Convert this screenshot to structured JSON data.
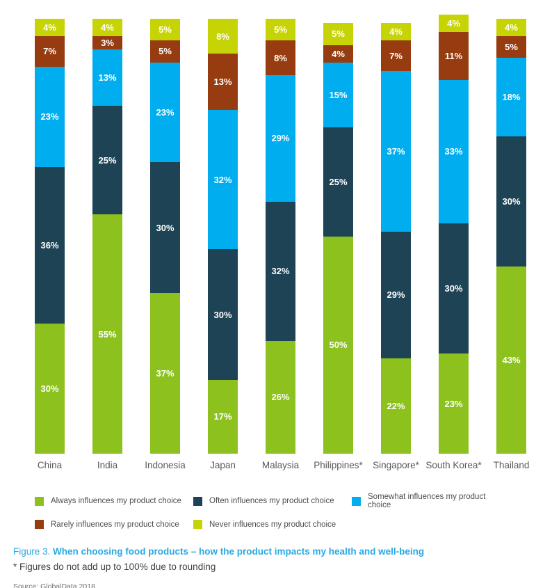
{
  "chart_data": {
    "type": "bar",
    "stacked": true,
    "orientation": "vertical",
    "grid": false,
    "axes_visible": false,
    "value_suffix": "%",
    "legend_position": "bottom",
    "categories": [
      "China",
      "India",
      "Indonesia",
      "Japan",
      "Malaysia",
      "Philippines*",
      "Singapore*",
      "South Korea*",
      "Thailand"
    ],
    "series": [
      {
        "name": "Always influences my product choice",
        "color": "#8dc21e",
        "values": [
          30,
          55,
          37,
          17,
          26,
          50,
          22,
          23,
          43
        ]
      },
      {
        "name": "Often influences my product choice",
        "color": "#1d4355",
        "values": [
          36,
          25,
          30,
          30,
          32,
          25,
          29,
          30,
          30
        ]
      },
      {
        "name": "Somewhat influences my product choice",
        "color": "#00aeef",
        "values": [
          23,
          13,
          23,
          32,
          29,
          15,
          37,
          33,
          18
        ]
      },
      {
        "name": "Rarely influences my product choice",
        "color": "#963c10",
        "values": [
          7,
          3,
          5,
          13,
          8,
          4,
          7,
          11,
          5
        ]
      },
      {
        "name": "Never influences my product choice",
        "color": "#c6d405",
        "values": [
          4,
          4,
          5,
          8,
          5,
          5,
          4,
          4,
          4
        ]
      }
    ],
    "label_color": "#ffffff",
    "category_label_color": "#58595b"
  },
  "caption": {
    "prefix": "Figure 3.",
    "title": "When choosing food products – how the product impacts my health and well-being"
  },
  "footnote": "* Figures do not add up to 100% due to rounding",
  "source": "Source: GlobalData 2018",
  "accent_colors": {
    "caption_blue": "#29a9e1",
    "footnote_gray": "#414042",
    "source_gray": "#6d6e71"
  }
}
